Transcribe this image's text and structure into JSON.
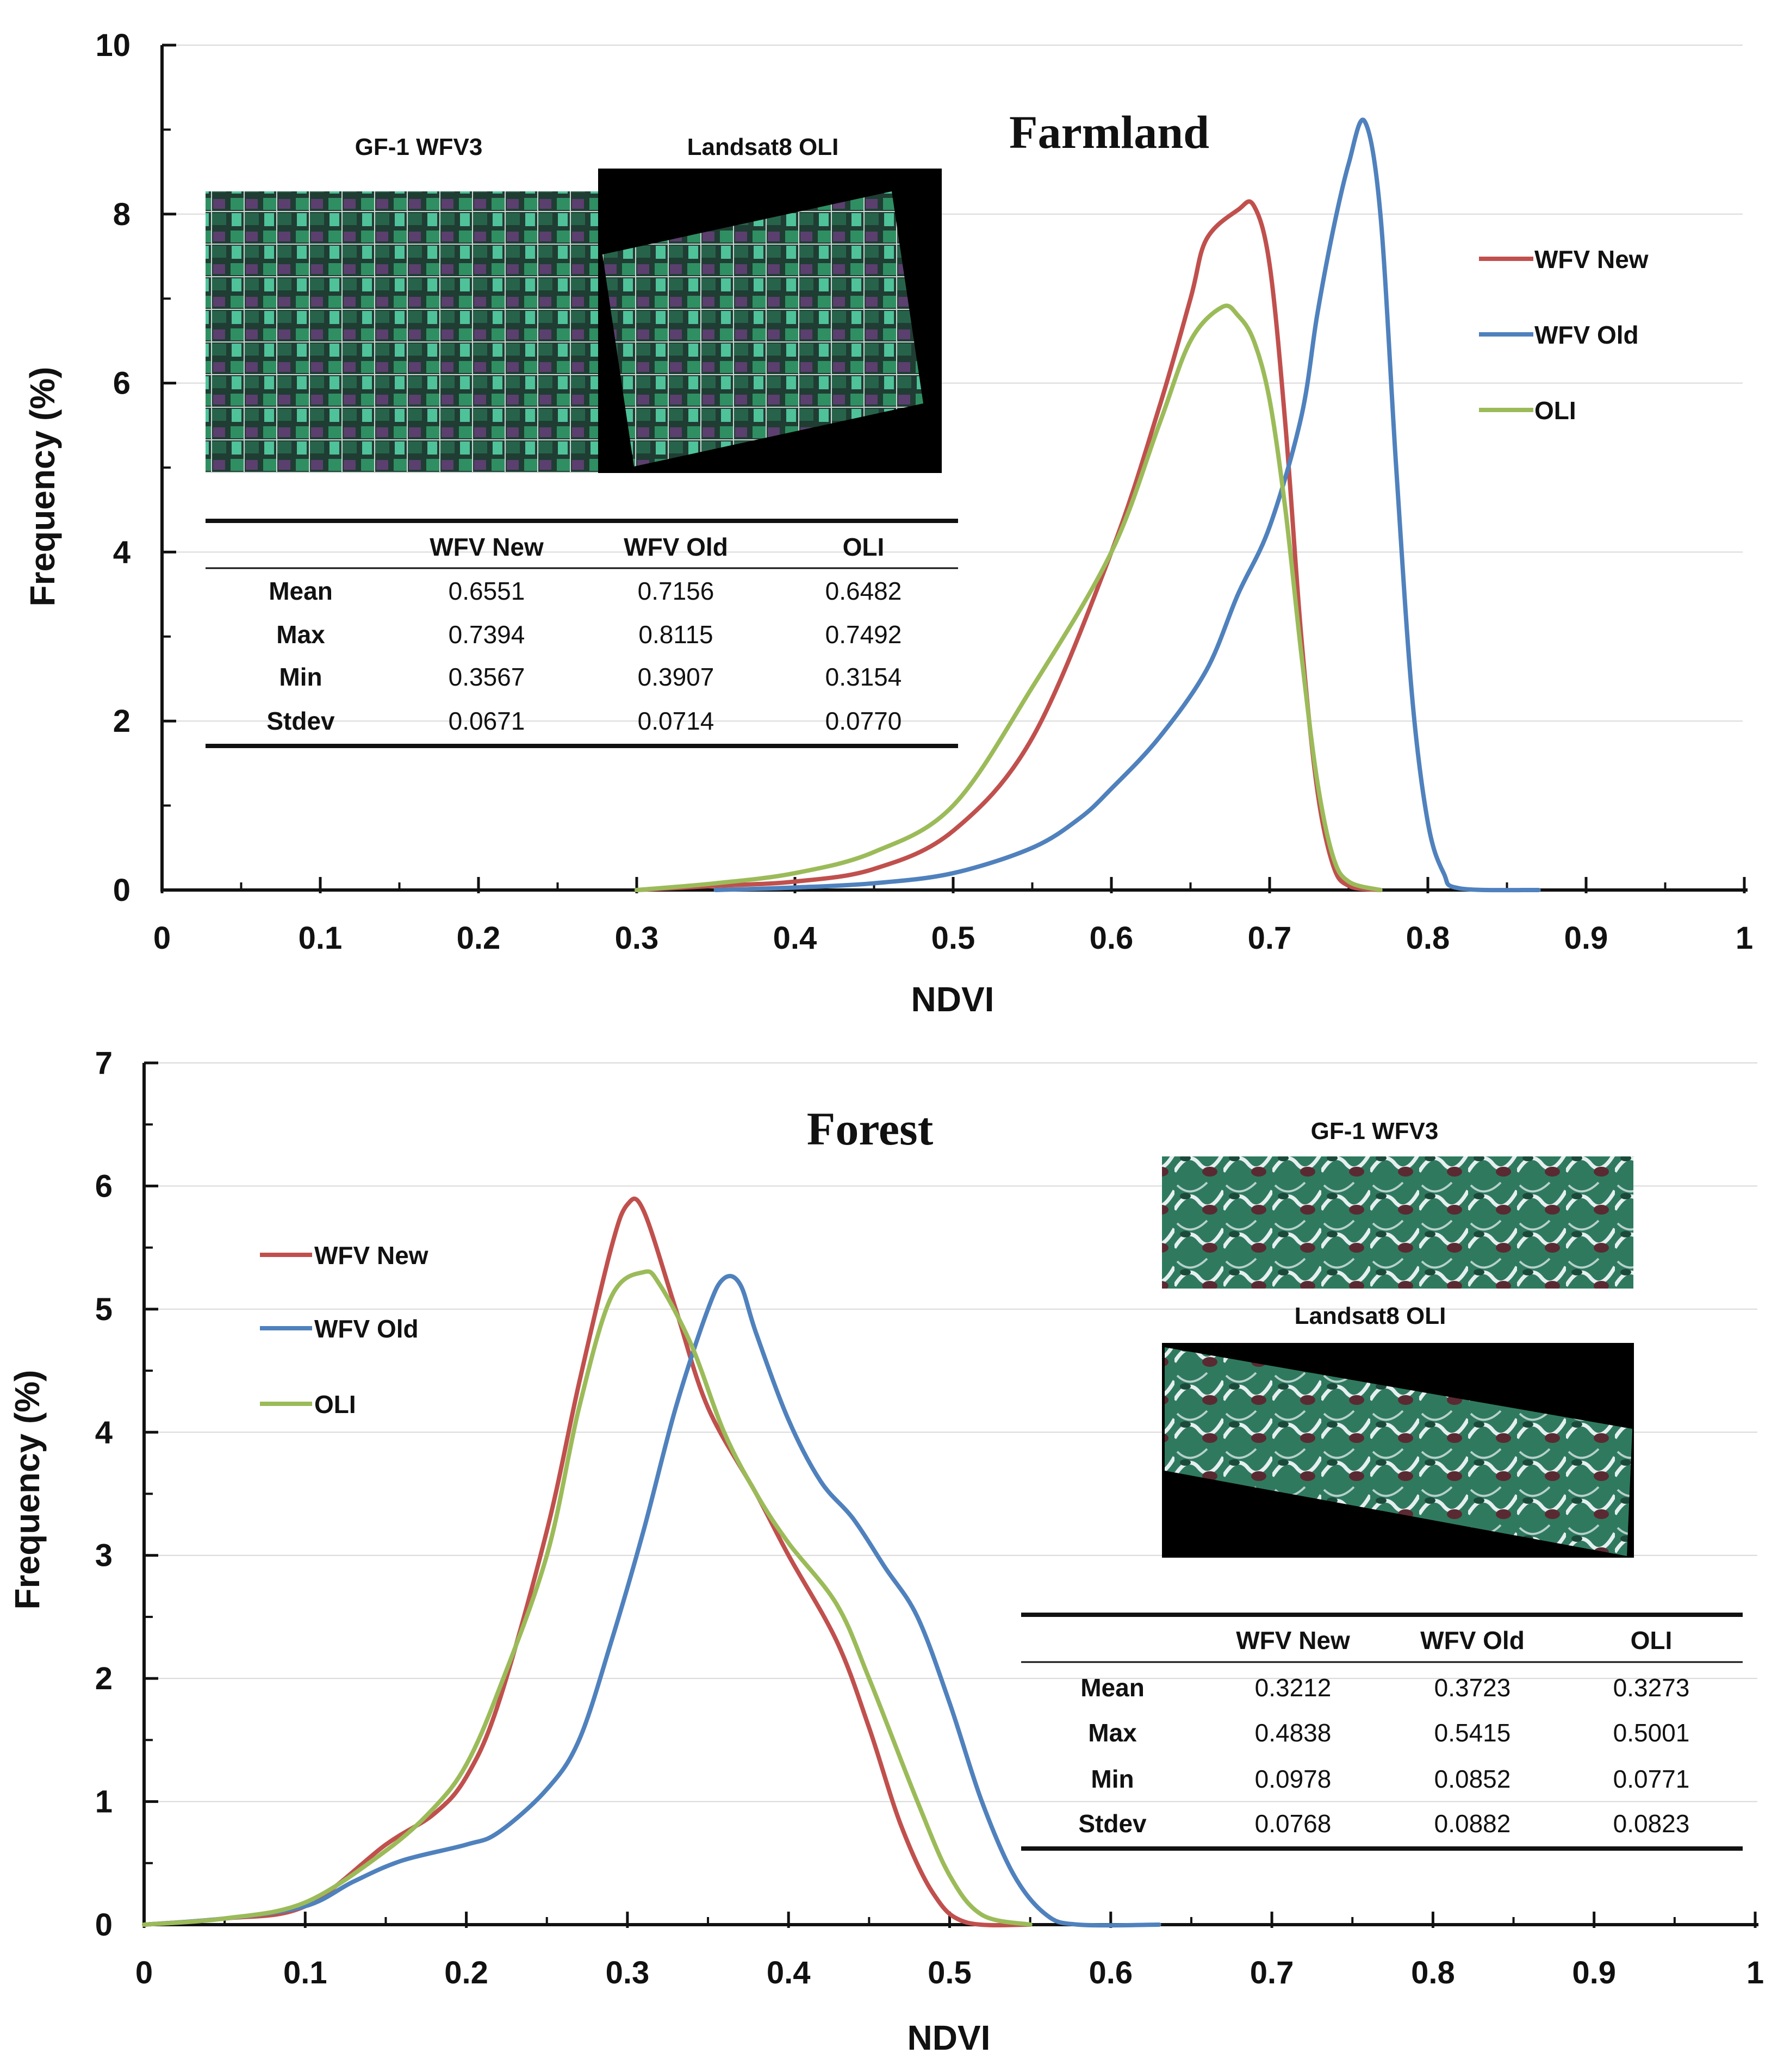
{
  "chart_data": [
    {
      "type": "line",
      "title": "Farmland",
      "xlabel": "NDVI",
      "ylabel": "Frequency (%)",
      "xlim": [
        0,
        1
      ],
      "ylim": [
        0,
        10
      ],
      "xticks": [
        "0",
        "0.1",
        "0.2",
        "0.3",
        "0.4",
        "0.5",
        "0.6",
        "0.7",
        "0.8",
        "0.9",
        "1"
      ],
      "yticks": [
        "0",
        "2",
        "4",
        "6",
        "8",
        "10"
      ],
      "grid": true,
      "legend_position": "right",
      "series": [
        {
          "name": "WFV New",
          "color": "#c0504d",
          "points": [
            [
              0.3,
              0
            ],
            [
              0.35,
              0.05
            ],
            [
              0.4,
              0.1
            ],
            [
              0.45,
              0.25
            ],
            [
              0.5,
              0.7
            ],
            [
              0.55,
              1.8
            ],
            [
              0.6,
              4.0
            ],
            [
              0.63,
              5.7
            ],
            [
              0.65,
              7.0
            ],
            [
              0.66,
              7.7
            ],
            [
              0.68,
              8.05
            ],
            [
              0.69,
              8.1
            ],
            [
              0.7,
              7.4
            ],
            [
              0.71,
              5.5
            ],
            [
              0.72,
              3.0
            ],
            [
              0.73,
              1.2
            ],
            [
              0.74,
              0.3
            ],
            [
              0.75,
              0.05
            ],
            [
              0.77,
              0
            ]
          ]
        },
        {
          "name": "WFV Old",
          "color": "#4f81bd",
          "points": [
            [
              0.35,
              0
            ],
            [
              0.4,
              0.03
            ],
            [
              0.45,
              0.08
            ],
            [
              0.5,
              0.2
            ],
            [
              0.55,
              0.5
            ],
            [
              0.58,
              0.85
            ],
            [
              0.6,
              1.2
            ],
            [
              0.63,
              1.8
            ],
            [
              0.66,
              2.6
            ],
            [
              0.68,
              3.5
            ],
            [
              0.7,
              4.3
            ],
            [
              0.72,
              5.6
            ],
            [
              0.73,
              6.8
            ],
            [
              0.74,
              7.8
            ],
            [
              0.75,
              8.6
            ],
            [
              0.76,
              9.1
            ],
            [
              0.77,
              8.0
            ],
            [
              0.78,
              5.0
            ],
            [
              0.79,
              2.3
            ],
            [
              0.8,
              0.8
            ],
            [
              0.81,
              0.2
            ],
            [
              0.82,
              0.02
            ],
            [
              0.87,
              0
            ]
          ]
        },
        {
          "name": "OLI",
          "color": "#9bbb59",
          "points": [
            [
              0.3,
              0
            ],
            [
              0.35,
              0.08
            ],
            [
              0.4,
              0.2
            ],
            [
              0.45,
              0.45
            ],
            [
              0.5,
              1.0
            ],
            [
              0.55,
              2.4
            ],
            [
              0.6,
              4.0
            ],
            [
              0.63,
              5.5
            ],
            [
              0.65,
              6.5
            ],
            [
              0.67,
              6.9
            ],
            [
              0.68,
              6.8
            ],
            [
              0.69,
              6.5
            ],
            [
              0.7,
              5.8
            ],
            [
              0.71,
              4.5
            ],
            [
              0.72,
              2.8
            ],
            [
              0.73,
              1.3
            ],
            [
              0.74,
              0.4
            ],
            [
              0.75,
              0.1
            ],
            [
              0.77,
              0
            ]
          ]
        }
      ],
      "inset_captions": [
        "GF-1 WFV3",
        "Landsat8 OLI"
      ],
      "table": {
        "columns": [
          "WFV New",
          "WFV Old",
          "OLI"
        ],
        "rows": [
          {
            "label": "Mean",
            "values": [
              "0.6551",
              "0.7156",
              "0.6482"
            ]
          },
          {
            "label": "Max",
            "values": [
              "0.7394",
              "0.8115",
              "0.7492"
            ]
          },
          {
            "label": "Min",
            "values": [
              "0.3567",
              "0.3907",
              "0.3154"
            ]
          },
          {
            "label": "Stdev",
            "values": [
              "0.0671",
              "0.0714",
              "0.0770"
            ]
          }
        ]
      }
    },
    {
      "type": "line",
      "title": "Forest",
      "xlabel": "NDVI",
      "ylabel": "Frequency (%)",
      "xlim": [
        0,
        1
      ],
      "ylim": [
        0,
        7
      ],
      "xticks": [
        "0",
        "0.1",
        "0.2",
        "0.3",
        "0.4",
        "0.5",
        "0.6",
        "0.7",
        "0.8",
        "0.9",
        "1"
      ],
      "yticks": [
        "0",
        "1",
        "2",
        "3",
        "4",
        "5",
        "6",
        "7"
      ],
      "grid": true,
      "legend_position": "left",
      "series": [
        {
          "name": "WFV New",
          "color": "#c0504d",
          "points": [
            [
              0,
              0
            ],
            [
              0.05,
              0.05
            ],
            [
              0.1,
              0.15
            ],
            [
              0.15,
              0.65
            ],
            [
              0.18,
              0.9
            ],
            [
              0.2,
              1.2
            ],
            [
              0.22,
              1.8
            ],
            [
              0.25,
              3.2
            ],
            [
              0.27,
              4.4
            ],
            [
              0.29,
              5.5
            ],
            [
              0.3,
              5.85
            ],
            [
              0.31,
              5.8
            ],
            [
              0.33,
              5.0
            ],
            [
              0.35,
              4.2
            ],
            [
              0.38,
              3.5
            ],
            [
              0.4,
              3.0
            ],
            [
              0.43,
              2.3
            ],
            [
              0.45,
              1.6
            ],
            [
              0.47,
              0.8
            ],
            [
              0.49,
              0.25
            ],
            [
              0.51,
              0.02
            ],
            [
              0.55,
              0
            ]
          ]
        },
        {
          "name": "WFV Old",
          "color": "#4f81bd",
          "points": [
            [
              0,
              0
            ],
            [
              0.05,
              0.05
            ],
            [
              0.1,
              0.15
            ],
            [
              0.13,
              0.35
            ],
            [
              0.16,
              0.52
            ],
            [
              0.2,
              0.65
            ],
            [
              0.22,
              0.75
            ],
            [
              0.25,
              1.1
            ],
            [
              0.27,
              1.5
            ],
            [
              0.29,
              2.3
            ],
            [
              0.31,
              3.2
            ],
            [
              0.33,
              4.2
            ],
            [
              0.35,
              5.0
            ],
            [
              0.36,
              5.25
            ],
            [
              0.37,
              5.2
            ],
            [
              0.38,
              4.8
            ],
            [
              0.4,
              4.1
            ],
            [
              0.42,
              3.6
            ],
            [
              0.44,
              3.3
            ],
            [
              0.46,
              2.9
            ],
            [
              0.48,
              2.5
            ],
            [
              0.5,
              1.8
            ],
            [
              0.52,
              1.0
            ],
            [
              0.54,
              0.4
            ],
            [
              0.56,
              0.08
            ],
            [
              0.58,
              0
            ],
            [
              0.63,
              0
            ]
          ]
        },
        {
          "name": "OLI",
          "color": "#9bbb59",
          "points": [
            [
              0,
              0
            ],
            [
              0.05,
              0.05
            ],
            [
              0.1,
              0.18
            ],
            [
              0.15,
              0.6
            ],
            [
              0.18,
              0.95
            ],
            [
              0.2,
              1.3
            ],
            [
              0.22,
              1.9
            ],
            [
              0.25,
              3.0
            ],
            [
              0.27,
              4.2
            ],
            [
              0.29,
              5.1
            ],
            [
              0.31,
              5.3
            ],
            [
              0.32,
              5.2
            ],
            [
              0.34,
              4.7
            ],
            [
              0.36,
              4.0
            ],
            [
              0.38,
              3.5
            ],
            [
              0.4,
              3.1
            ],
            [
              0.43,
              2.6
            ],
            [
              0.45,
              2.0
            ],
            [
              0.48,
              1.0
            ],
            [
              0.5,
              0.4
            ],
            [
              0.52,
              0.08
            ],
            [
              0.55,
              0
            ]
          ]
        }
      ],
      "inset_captions": [
        "GF-1 WFV3",
        "Landsat8 OLI"
      ],
      "table": {
        "columns": [
          "WFV New",
          "WFV Old",
          "OLI"
        ],
        "rows": [
          {
            "label": "Mean",
            "values": [
              "0.3212",
              "0.3723",
              "0.3273"
            ]
          },
          {
            "label": "Max",
            "values": [
              "0.4838",
              "0.5415",
              "0.5001"
            ]
          },
          {
            "label": "Min",
            "values": [
              "0.0978",
              "0.0852",
              "0.0771"
            ]
          },
          {
            "label": "Stdev",
            "values": [
              "0.0768",
              "0.0882",
              "0.0823"
            ]
          }
        ]
      }
    }
  ]
}
